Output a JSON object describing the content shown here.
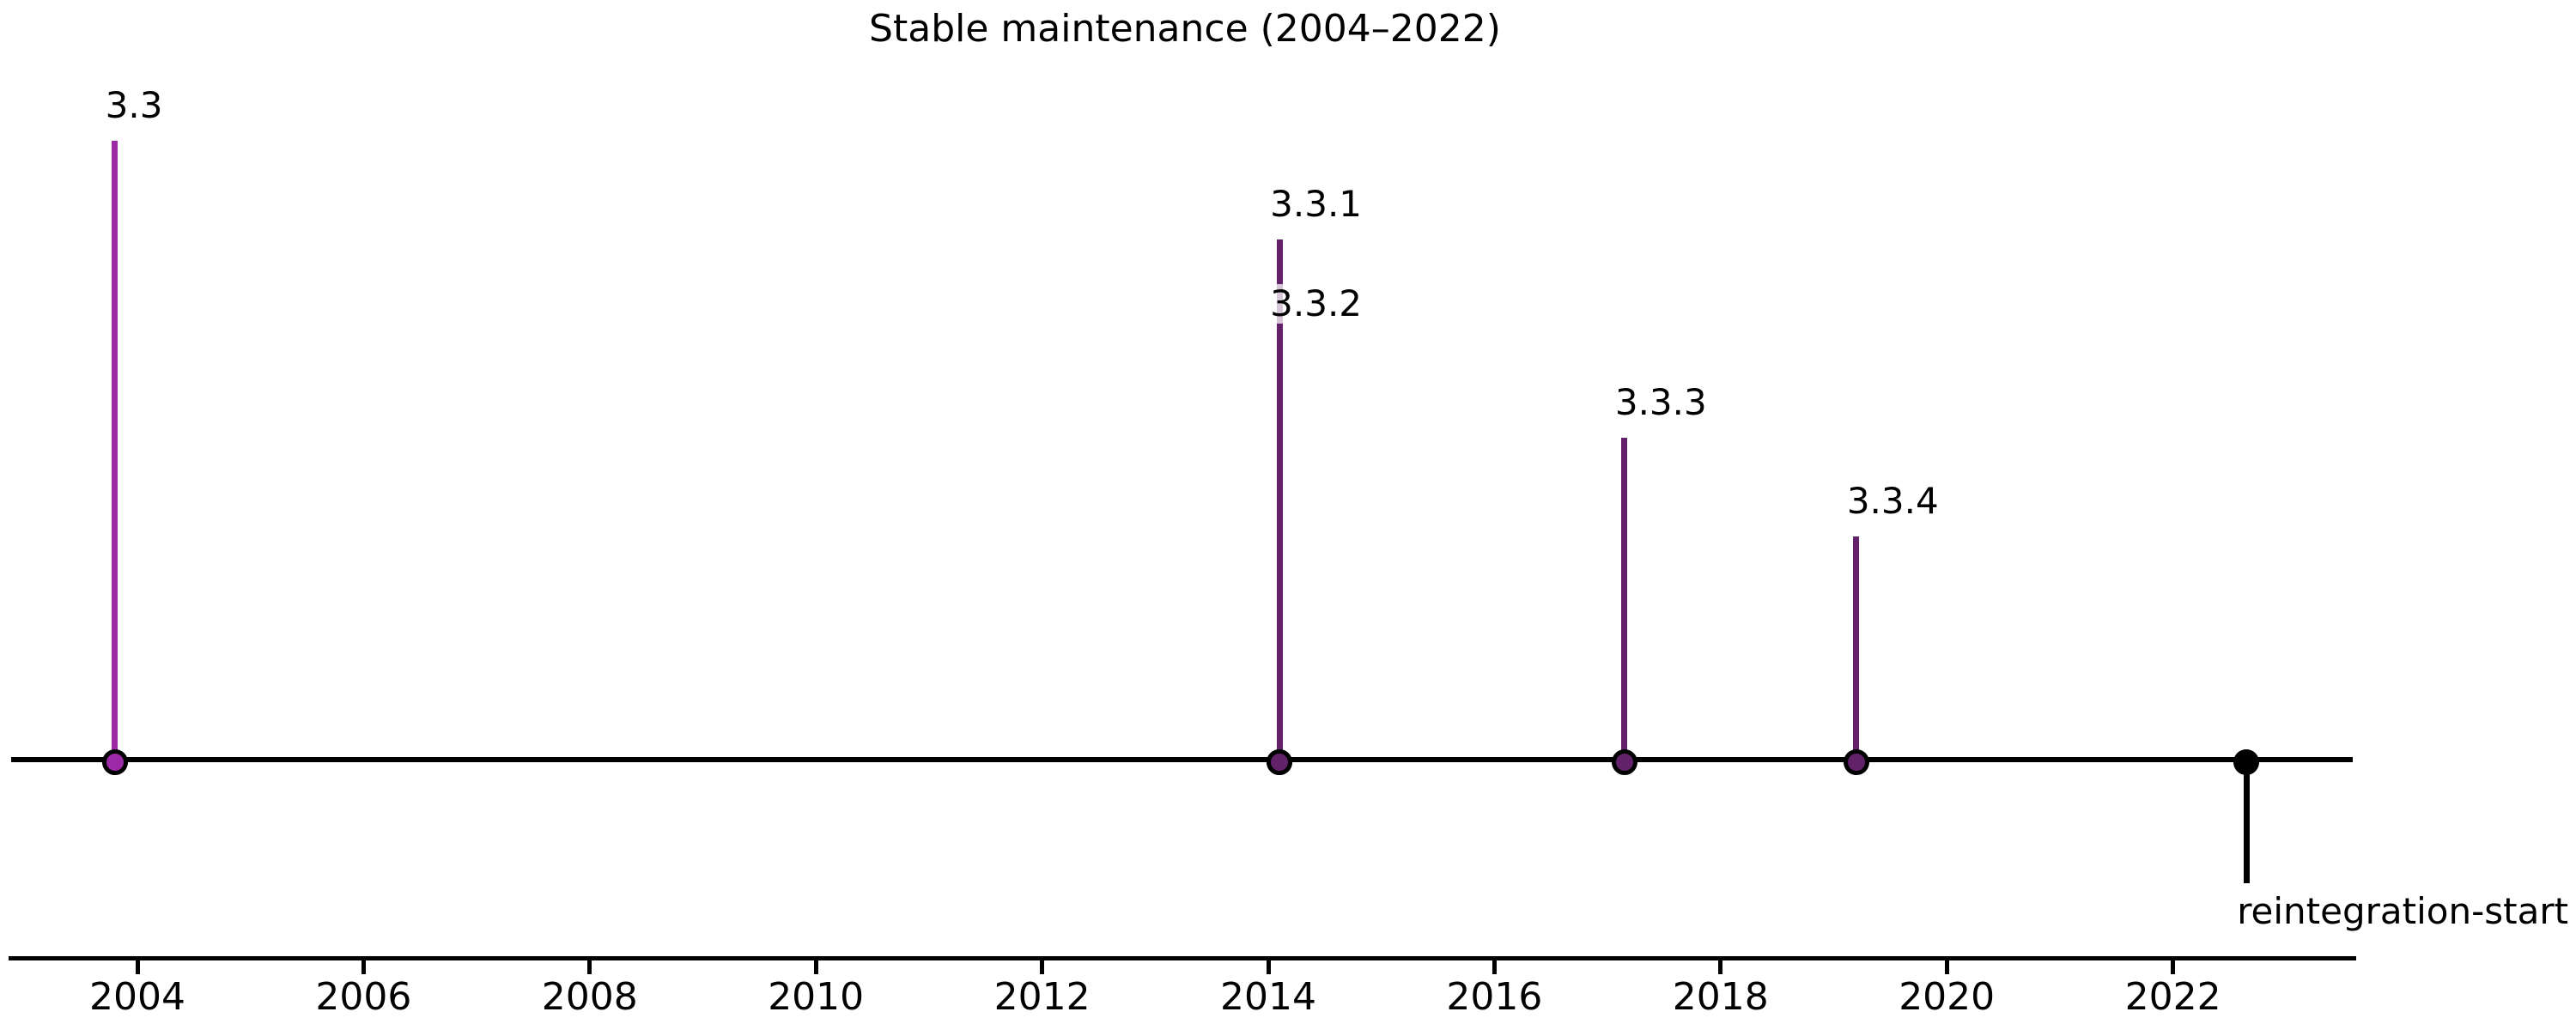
{
  "chart_data": {
    "type": "scatter",
    "subtype": "timeline-stem",
    "title": "Stable maintenance (2004–2022)",
    "xlabel": "",
    "ylabel": "",
    "xlim": [
      2002.85,
      2023.7
    ],
    "x_ticks": [
      2004,
      2006,
      2008,
      2010,
      2012,
      2014,
      2016,
      2018,
      2020,
      2022
    ],
    "grid": false,
    "legend": false,
    "baseline_level": 0,
    "events": [
      {
        "label": "3.3",
        "year": 2003.8,
        "level": 1.25,
        "color": "#9D29A7"
      },
      {
        "label": "3.3.1",
        "year": 2014.1,
        "level": 1.05,
        "color": "#632169"
      },
      {
        "label": "3.3.2",
        "year": 2014.1,
        "level": 0.85,
        "color": "#632169"
      },
      {
        "label": "3.3.3",
        "year": 2017.15,
        "level": 0.65,
        "color": "#632169"
      },
      {
        "label": "3.3.4",
        "year": 2019.2,
        "level": 0.45,
        "color": "#632169"
      },
      {
        "label": "reintegration-start",
        "year": 2022.65,
        "level": -0.25,
        "color": "#000000"
      }
    ],
    "colors": {
      "baseline": "#000000",
      "feature_release": "#9D29A7",
      "patch_release": "#632169",
      "annotation_event": "#000000",
      "label_box": "rgba(255,255,255,0.75)"
    }
  }
}
